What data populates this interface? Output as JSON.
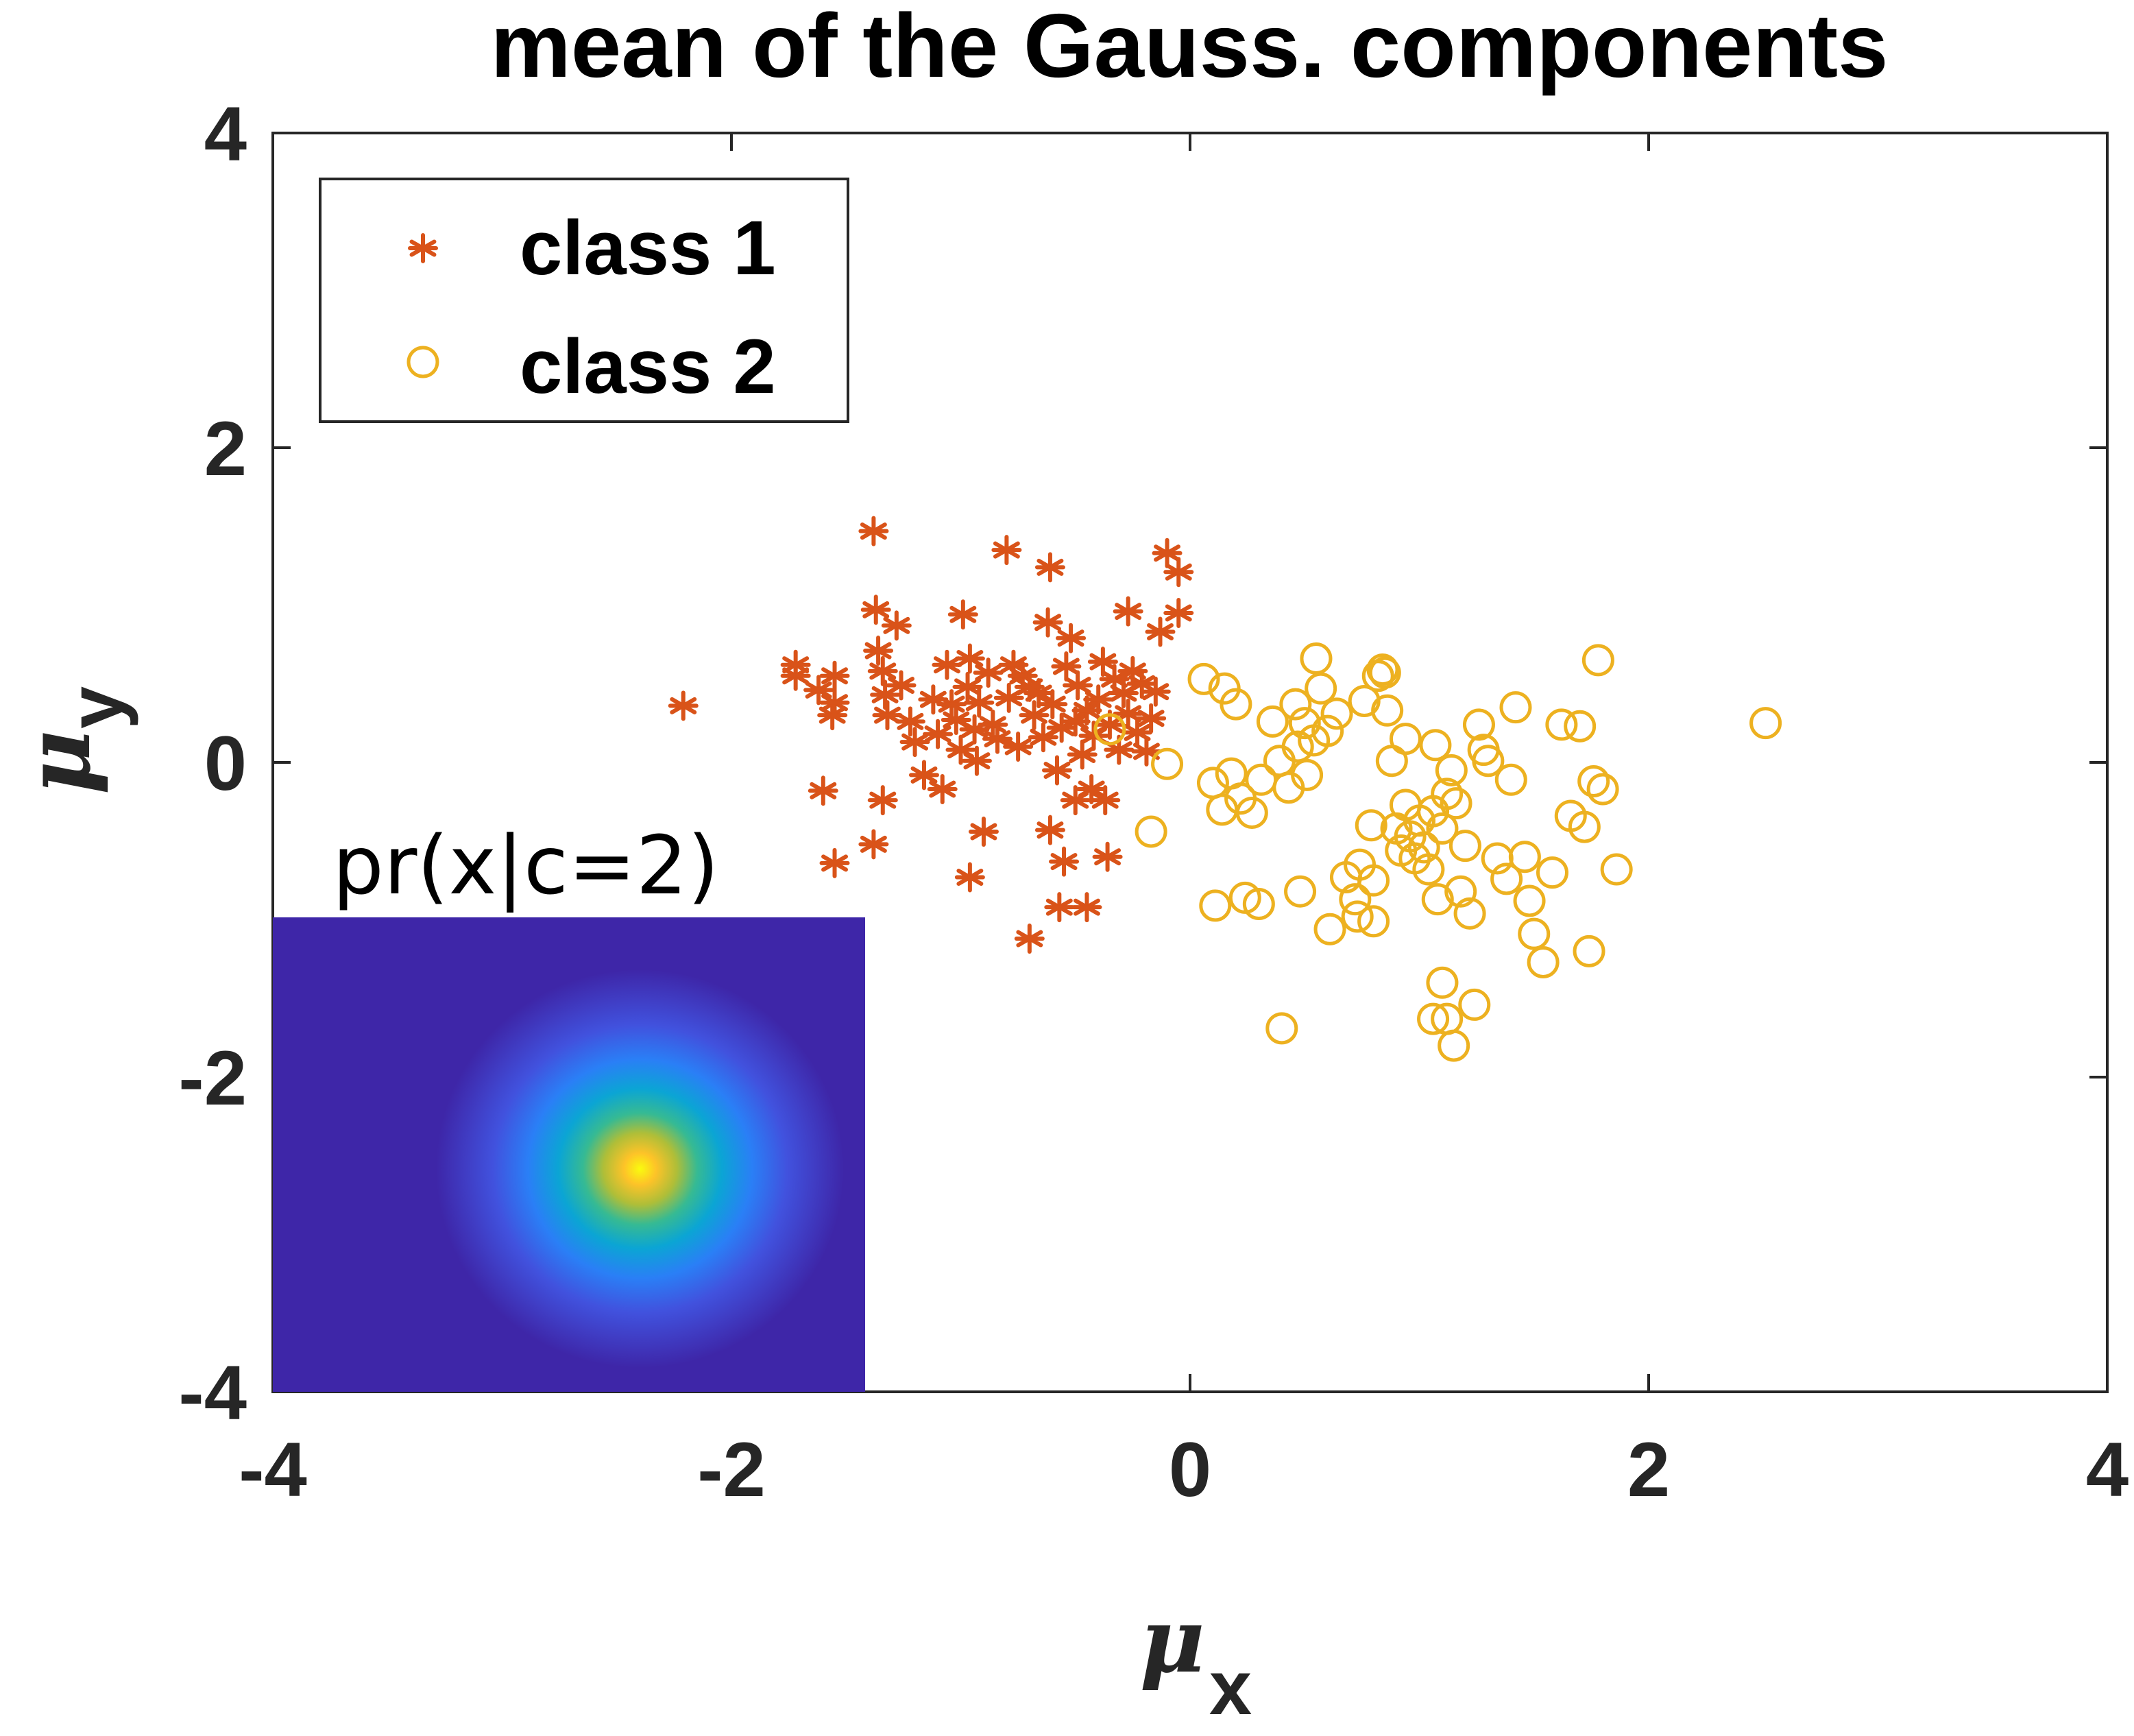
{
  "chart_data": {
    "type": "scatter",
    "title": "mean of the Gauss. components",
    "xlabel": "μ",
    "xlabel_sub": "x",
    "ylabel": "μ",
    "ylabel_sub": "y",
    "xlim": [
      -4,
      4
    ],
    "ylim": [
      -4,
      4
    ],
    "xticks": [
      -4,
      -2,
      0,
      2,
      4
    ],
    "yticks": [
      -4,
      -2,
      0,
      2,
      4
    ],
    "xtick_labels": [
      "-4",
      "-2",
      "0",
      "2",
      "4"
    ],
    "ytick_labels": [
      "-4",
      "-2",
      "0",
      "2",
      "4"
    ],
    "grid": false,
    "legend_position": "top-left",
    "series": [
      {
        "name": "class 1",
        "marker": "asterisk",
        "color": "#D95319",
        "points": [
          [
            -2.21,
            0.36
          ],
          [
            -1.72,
            0.62
          ],
          [
            -1.72,
            0.55
          ],
          [
            -1.62,
            0.46
          ],
          [
            -1.56,
            0.3
          ],
          [
            -1.55,
            0.38
          ],
          [
            -1.55,
            0.55
          ],
          [
            -1.38,
            1.47
          ],
          [
            -1.37,
            0.97
          ],
          [
            -1.36,
            0.71
          ],
          [
            -1.34,
            0.58
          ],
          [
            -1.33,
            0.43
          ],
          [
            -1.32,
            0.3
          ],
          [
            -1.28,
            0.87
          ],
          [
            -1.26,
            0.49
          ],
          [
            -1.22,
            0.26
          ],
          [
            -1.2,
            0.13
          ],
          [
            -1.16,
            -0.08
          ],
          [
            -1.12,
            0.4
          ],
          [
            -1.1,
            0.18
          ],
          [
            -1.08,
            -0.17
          ],
          [
            -1.06,
            0.62
          ],
          [
            -1.04,
            0.37
          ],
          [
            -1.02,
            0.27
          ],
          [
            -1.0,
            0.08
          ],
          [
            -0.99,
            0.94
          ],
          [
            -0.97,
            0.48
          ],
          [
            -0.96,
            0.66
          ],
          [
            -0.94,
            0.21
          ],
          [
            -0.93,
            0.01
          ],
          [
            -0.92,
            0.38
          ],
          [
            -0.9,
            -0.44
          ],
          [
            -0.88,
            0.57
          ],
          [
            -0.86,
            0.24
          ],
          [
            -0.84,
            0.15
          ],
          [
            -0.8,
            1.35
          ],
          [
            -0.79,
            0.41
          ],
          [
            -0.77,
            0.62
          ],
          [
            -0.75,
            0.1
          ],
          [
            -0.73,
            0.55
          ],
          [
            -0.7,
            0.48
          ],
          [
            -0.68,
            0.3
          ],
          [
            -0.66,
            0.44
          ],
          [
            -0.64,
            0.16
          ],
          [
            -0.62,
            0.89
          ],
          [
            -0.61,
            -0.43
          ],
          [
            -0.6,
            0.37
          ],
          [
            -0.58,
            -0.05
          ],
          [
            -0.56,
            0.22
          ],
          [
            -0.54,
            0.61
          ],
          [
            -0.52,
            0.79
          ],
          [
            -0.5,
            0.26
          ],
          [
            -0.49,
            0.49
          ],
          [
            -0.47,
            0.05
          ],
          [
            -0.45,
            0.33
          ],
          [
            -0.43,
            -0.17
          ],
          [
            -0.42,
            0.17
          ],
          [
            -0.4,
            0.4
          ],
          [
            -0.38,
            0.64
          ],
          [
            -0.37,
            -0.24
          ],
          [
            -0.35,
            0.24
          ],
          [
            -0.33,
            0.53
          ],
          [
            -0.31,
            0.08
          ],
          [
            -0.29,
            0.44
          ],
          [
            -0.27,
            0.31
          ],
          [
            -0.25,
            0.58
          ],
          [
            -0.23,
            0.19
          ],
          [
            -0.21,
            0.5
          ],
          [
            -0.19,
            0.07
          ],
          [
            -0.17,
            0.28
          ],
          [
            -0.15,
            0.45
          ],
          [
            -0.55,
            -0.63
          ],
          [
            -0.45,
            -0.92
          ],
          [
            -0.7,
            -1.12
          ],
          [
            -1.38,
            -0.52
          ],
          [
            -0.96,
            -0.73
          ],
          [
            -0.36,
            -0.6
          ],
          [
            -0.5,
            -0.24
          ],
          [
            -0.13,
            0.83
          ],
          [
            -0.1,
            1.33
          ],
          [
            -0.05,
            0.95
          ],
          [
            -0.05,
            1.21
          ],
          [
            -0.61,
            1.24
          ],
          [
            -0.27,
            0.96
          ],
          [
            -1.6,
            -0.18
          ],
          [
            -1.55,
            -0.64
          ],
          [
            -1.34,
            -0.24
          ],
          [
            -0.57,
            -0.92
          ]
        ]
      },
      {
        "name": "class 2",
        "marker": "circle",
        "color": "#EDB120",
        "points": [
          [
            -0.35,
            0.21
          ],
          [
            -0.1,
            -0.01
          ],
          [
            -0.17,
            -0.44
          ],
          [
            0.06,
            0.53
          ],
          [
            0.15,
            0.47
          ],
          [
            0.2,
            0.37
          ],
          [
            0.1,
            -0.13
          ],
          [
            0.18,
            -0.07
          ],
          [
            0.22,
            -0.23
          ],
          [
            0.27,
            -0.32
          ],
          [
            0.14,
            -0.3
          ],
          [
            0.31,
            -0.11
          ],
          [
            0.36,
            0.26
          ],
          [
            0.39,
            0.01
          ],
          [
            0.43,
            -0.16
          ],
          [
            0.46,
            0.37
          ],
          [
            0.47,
            0.1
          ],
          [
            0.5,
            0.25
          ],
          [
            0.51,
            -0.08
          ],
          [
            0.54,
            0.14
          ],
          [
            0.55,
            0.66
          ],
          [
            0.57,
            0.47
          ],
          [
            0.6,
            0.2
          ],
          [
            0.64,
            0.31
          ],
          [
            0.68,
            -0.73
          ],
          [
            0.72,
            -0.87
          ],
          [
            0.74,
            -0.65
          ],
          [
            0.76,
            0.39
          ],
          [
            0.79,
            -0.4
          ],
          [
            0.8,
            -0.75
          ],
          [
            0.82,
            0.55
          ],
          [
            0.84,
            0.59
          ],
          [
            0.86,
            0.33
          ],
          [
            0.88,
            0.01
          ],
          [
            0.9,
            -0.42
          ],
          [
            0.92,
            -0.56
          ],
          [
            0.94,
            -0.27
          ],
          [
            0.96,
            -0.47
          ],
          [
            0.98,
            -0.61
          ],
          [
            1.0,
            -0.37
          ],
          [
            1.02,
            -0.54
          ],
          [
            1.04,
            -0.68
          ],
          [
            1.06,
            -0.31
          ],
          [
            1.08,
            -0.87
          ],
          [
            1.1,
            -0.42
          ],
          [
            1.12,
            -0.2
          ],
          [
            1.14,
            -0.05
          ],
          [
            1.16,
            -0.26
          ],
          [
            1.18,
            -0.82
          ],
          [
            1.2,
            -0.53
          ],
          [
            1.22,
            -0.96
          ],
          [
            1.24,
            -1.54
          ],
          [
            1.26,
            0.24
          ],
          [
            1.28,
            0.08
          ],
          [
            1.3,
            0.01
          ],
          [
            1.34,
            -0.61
          ],
          [
            1.38,
            -0.74
          ],
          [
            1.4,
            -0.11
          ],
          [
            1.42,
            0.35
          ],
          [
            1.46,
            -0.6
          ],
          [
            1.48,
            -0.88
          ],
          [
            1.5,
            -1.09
          ],
          [
            1.54,
            -1.27
          ],
          [
            1.58,
            -0.7
          ],
          [
            1.62,
            0.24
          ],
          [
            1.66,
            -0.34
          ],
          [
            1.7,
            0.23
          ],
          [
            1.72,
            -0.41
          ],
          [
            1.74,
            -1.2
          ],
          [
            1.76,
            -0.12
          ],
          [
            1.78,
            0.65
          ],
          [
            1.8,
            -0.17
          ],
          [
            1.86,
            -0.68
          ],
          [
            1.1,
            -1.4
          ],
          [
            1.06,
            -1.63
          ],
          [
            1.15,
            -1.8
          ],
          [
            1.12,
            -1.63
          ],
          [
            0.4,
            -1.69
          ],
          [
            0.61,
            -1.06
          ],
          [
            0.8,
            -1.01
          ],
          [
            0.48,
            -0.82
          ],
          [
            0.24,
            -0.86
          ],
          [
            0.11,
            -0.91
          ],
          [
            0.3,
            -0.9
          ],
          [
            2.51,
            0.25
          ],
          [
            1.07,
            0.11
          ],
          [
            0.94,
            0.15
          ],
          [
            0.73,
            -0.98
          ],
          [
            0.85,
            0.57
          ]
        ]
      }
    ],
    "inset": {
      "title": "pr(x|c=2)",
      "type": "heatmap",
      "colormap": "parula",
      "peak_position": [
        0.62,
        0.53
      ],
      "spread": [
        0.09,
        0.11
      ],
      "background": "#3E26A8"
    }
  }
}
